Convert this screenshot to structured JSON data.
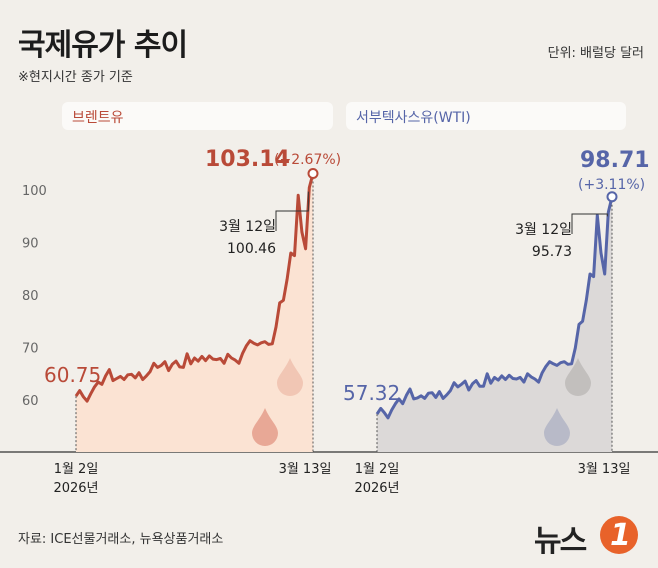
{
  "title": "국제유가 추이",
  "unit": "단위: 배럴당 달러",
  "note": "※현지시간 종가 기준",
  "source": "자료: ICE선물거래소, 뉴욕상품거래소",
  "logo": {
    "text": "뉴스",
    "number": "1"
  },
  "colors": {
    "brent": "#b94a38",
    "brent_fill": "#fbe3d3",
    "wti": "#5665a8",
    "wti_fill": "#dcd9d8"
  },
  "chart_data": [
    {
      "type": "area",
      "series_label": "브렌트유",
      "yticks": [
        60,
        70,
        80,
        90,
        100
      ],
      "ylim": [
        50,
        106
      ],
      "x_start_label": "1월 2일\n2026년",
      "x_end_label": "3월 13일",
      "values": [
        60.75,
        61.8,
        60.6,
        59.8,
        61.2,
        62.5,
        63.4,
        63.0,
        64.6,
        65.8,
        63.7,
        64.1,
        64.5,
        63.9,
        64.8,
        64.9,
        64.2,
        65.2,
        63.9,
        64.6,
        65.4,
        67.0,
        66.2,
        66.6,
        67.3,
        65.6,
        66.8,
        67.4,
        66.3,
        66.2,
        68.8,
        66.9,
        68.0,
        67.4,
        68.3,
        67.5,
        68.4,
        67.8,
        67.7,
        67.9,
        67.0,
        68.7,
        68.0,
        67.6,
        67.0,
        68.9,
        70.3,
        71.3,
        70.8,
        70.5,
        70.9,
        71.1,
        70.6,
        70.7,
        73.9,
        78.5,
        79.0,
        83.0,
        88.0,
        87.5,
        99.0,
        92.0,
        88.8,
        100.46,
        103.14
      ],
      "first_label": "60.75",
      "last_label": "103.14",
      "last_change": "(+2.67%)",
      "annotation": {
        "date": "3월 12일",
        "value": "100.46"
      }
    },
    {
      "type": "area",
      "series_label": "서부텍사스유(WTI)",
      "x_start_label": "1월 2일\n2026년",
      "x_end_label": "3월 13일",
      "values": [
        57.32,
        58.4,
        57.6,
        56.6,
        58.1,
        59.3,
        60.2,
        59.3,
        60.9,
        62.1,
        60.2,
        60.4,
        60.8,
        60.3,
        61.3,
        61.4,
        60.5,
        61.6,
        60.3,
        61.0,
        61.8,
        63.3,
        62.5,
        63.0,
        63.6,
        61.9,
        63.1,
        63.7,
        62.6,
        62.6,
        65.0,
        63.2,
        64.3,
        63.8,
        64.6,
        63.9,
        64.7,
        64.1,
        64.0,
        64.3,
        63.4,
        65.0,
        64.4,
        64.0,
        63.4,
        65.2,
        66.4,
        67.3,
        66.9,
        66.6,
        67.1,
        67.3,
        66.8,
        66.9,
        69.9,
        74.4,
        75.0,
        79.0,
        84.0,
        83.5,
        95.2,
        88.0,
        84.0,
        95.73,
        98.71
      ],
      "first_label": "57.32",
      "last_label": "98.71",
      "last_change": "(+3.11%)",
      "annotation": {
        "date": "3월 12일",
        "value": "95.73"
      }
    }
  ]
}
